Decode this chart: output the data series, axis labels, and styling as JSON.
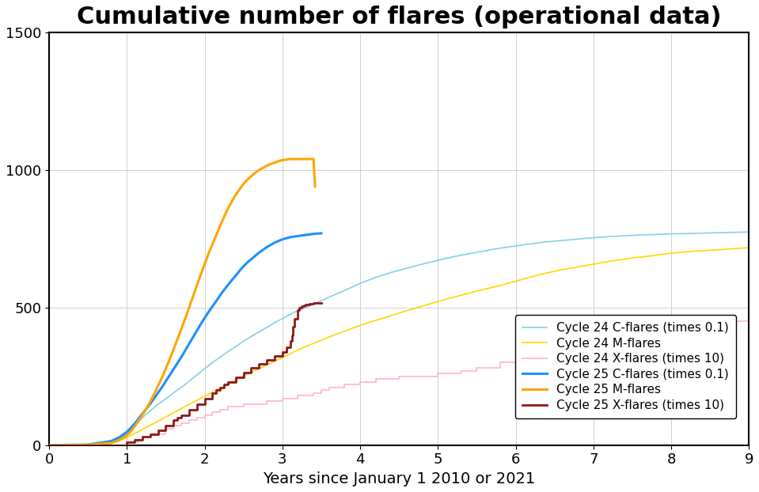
{
  "title": "Cumulative number of flares (operational data)",
  "xlabel": "Years since January 1 2010 or 2021",
  "xlim": [
    0,
    9
  ],
  "ylim": [
    0,
    1500
  ],
  "xticks": [
    0,
    1,
    2,
    3,
    4,
    5,
    6,
    7,
    8,
    9
  ],
  "yticks": [
    0,
    500,
    1000,
    1500
  ],
  "background_color": "#ffffff",
  "grid_color": "#d0d0d0",
  "c24_C": {
    "label": "Cycle 24 C-flares (times 0.1)",
    "color": "#87CEEB",
    "linewidth": 1.2,
    "zorder": 2,
    "x": [
      0,
      0.3,
      0.5,
      0.7,
      0.8,
      0.9,
      1.0,
      1.05,
      1.1,
      1.15,
      1.2,
      1.3,
      1.4,
      1.5,
      1.6,
      1.7,
      1.8,
      1.9,
      2.0,
      2.1,
      2.2,
      2.3,
      2.4,
      2.5,
      2.6,
      2.7,
      2.8,
      2.9,
      3.0,
      3.1,
      3.2,
      3.3,
      3.4,
      3.5,
      3.6,
      3.7,
      3.8,
      3.9,
      4.0,
      4.2,
      4.4,
      4.6,
      4.8,
      5.0,
      5.2,
      5.4,
      5.6,
      5.8,
      6.0,
      6.2,
      6.4,
      6.6,
      6.8,
      7.0,
      7.2,
      7.4,
      7.6,
      7.8,
      8.0,
      8.3,
      8.6,
      9.0
    ],
    "y": [
      0,
      1,
      3,
      8,
      15,
      25,
      40,
      55,
      70,
      85,
      100,
      125,
      148,
      168,
      190,
      210,
      232,
      255,
      278,
      300,
      320,
      340,
      358,
      378,
      395,
      412,
      428,
      445,
      460,
      475,
      490,
      500,
      512,
      525,
      538,
      550,
      562,
      575,
      588,
      610,
      628,
      643,
      658,
      672,
      685,
      696,
      706,
      716,
      724,
      732,
      739,
      744,
      749,
      754,
      758,
      761,
      764,
      766,
      768,
      770,
      772,
      775
    ]
  },
  "c24_M": {
    "label": "Cycle 24 M-flares",
    "color": "#FFD700",
    "linewidth": 1.2,
    "zorder": 2,
    "x": [
      0,
      0.3,
      0.5,
      0.7,
      0.9,
      1.0,
      1.1,
      1.2,
      1.3,
      1.4,
      1.5,
      1.6,
      1.7,
      1.8,
      1.9,
      2.0,
      2.1,
      2.2,
      2.3,
      2.4,
      2.5,
      2.6,
      2.7,
      2.8,
      2.9,
      3.0,
      3.1,
      3.2,
      3.3,
      3.5,
      3.7,
      3.9,
      4.1,
      4.3,
      4.5,
      4.7,
      4.9,
      5.1,
      5.3,
      5.5,
      5.8,
      6.0,
      6.2,
      6.4,
      6.6,
      6.8,
      7.0,
      7.2,
      7.5,
      7.8,
      8.0,
      8.3,
      8.6,
      9.0
    ],
    "y": [
      0,
      1,
      2,
      5,
      15,
      28,
      42,
      57,
      72,
      87,
      102,
      118,
      133,
      148,
      163,
      178,
      193,
      208,
      222,
      237,
      252,
      265,
      278,
      292,
      305,
      318,
      332,
      346,
      358,
      382,
      404,
      425,
      445,
      462,
      480,
      497,
      514,
      530,
      545,
      560,
      580,
      596,
      612,
      626,
      638,
      648,
      658,
      668,
      680,
      690,
      698,
      705,
      710,
      718
    ]
  },
  "c24_X": {
    "label": "Cycle 24 X-flares (times 10)",
    "color": "#FFB6C1",
    "linewidth": 1.2,
    "zorder": 2,
    "x": [
      0,
      0.5,
      0.8,
      1.0,
      1.15,
      1.2,
      1.3,
      1.5,
      1.6,
      1.7,
      1.8,
      1.9,
      2.0,
      2.1,
      2.2,
      2.3,
      2.5,
      2.8,
      3.0,
      3.2,
      3.4,
      3.5,
      3.6,
      3.8,
      4.0,
      4.2,
      4.5,
      5.0,
      5.3,
      5.5,
      5.8,
      6.0,
      6.1,
      6.15,
      6.2,
      6.5,
      7.0,
      7.5,
      8.0,
      8.5,
      9.0
    ],
    "y": [
      0,
      0,
      0,
      10,
      20,
      30,
      40,
      60,
      70,
      80,
      90,
      100,
      110,
      120,
      130,
      140,
      150,
      160,
      170,
      180,
      190,
      200,
      210,
      220,
      230,
      240,
      250,
      260,
      270,
      280,
      300,
      320,
      340,
      360,
      380,
      400,
      420,
      430,
      440,
      450,
      465
    ]
  },
  "c25_C": {
    "label": "Cycle 25 C-flares (times 0.1)",
    "color": "#1E90FF",
    "linewidth": 2.2,
    "zorder": 4,
    "x": [
      0,
      0.5,
      0.8,
      0.9,
      1.0,
      1.05,
      1.1,
      1.15,
      1.2,
      1.25,
      1.3,
      1.35,
      1.4,
      1.45,
      1.5,
      1.55,
      1.6,
      1.65,
      1.7,
      1.75,
      1.8,
      1.85,
      1.9,
      1.95,
      2.0,
      2.05,
      2.1,
      2.15,
      2.2,
      2.25,
      2.3,
      2.35,
      2.4,
      2.45,
      2.5,
      2.55,
      2.6,
      2.65,
      2.7,
      2.75,
      2.8,
      2.85,
      2.9,
      2.95,
      3.0,
      3.05,
      3.1,
      3.15,
      3.2,
      3.25,
      3.3,
      3.35,
      3.4,
      3.45,
      3.5
    ],
    "y": [
      0,
      2,
      15,
      28,
      48,
      62,
      78,
      96,
      114,
      132,
      150,
      170,
      190,
      210,
      232,
      254,
      276,
      298,
      320,
      344,
      368,
      392,
      416,
      440,
      462,
      484,
      504,
      524,
      545,
      564,
      582,
      600,
      616,
      634,
      650,
      664,
      676,
      688,
      700,
      710,
      720,
      728,
      736,
      742,
      748,
      752,
      756,
      758,
      760,
      762,
      764,
      766,
      768,
      769,
      770
    ]
  },
  "c25_M": {
    "label": "Cycle 25 M-flares",
    "color": "#FFA500",
    "linewidth": 2.2,
    "zorder": 4,
    "x": [
      0,
      0.5,
      0.8,
      0.9,
      1.0,
      1.05,
      1.1,
      1.15,
      1.2,
      1.25,
      1.3,
      1.35,
      1.4,
      1.45,
      1.5,
      1.55,
      1.6,
      1.65,
      1.7,
      1.75,
      1.8,
      1.85,
      1.9,
      1.95,
      2.0,
      2.05,
      2.1,
      2.15,
      2.2,
      2.25,
      2.3,
      2.35,
      2.4,
      2.45,
      2.5,
      2.55,
      2.6,
      2.65,
      2.7,
      2.75,
      2.8,
      2.85,
      2.9,
      2.95,
      3.0,
      3.05,
      3.1,
      3.15,
      3.2,
      3.25,
      3.3,
      3.35,
      3.4,
      3.42
    ],
    "y": [
      0,
      1,
      8,
      18,
      35,
      50,
      68,
      88,
      110,
      132,
      158,
      186,
      215,
      245,
      278,
      312,
      348,
      385,
      422,
      460,
      500,
      540,
      580,
      620,
      658,
      696,
      730,
      764,
      798,
      830,
      860,
      886,
      910,
      930,
      950,
      965,
      978,
      990,
      1000,
      1008,
      1016,
      1022,
      1027,
      1032,
      1036,
      1038,
      1040,
      1040,
      1040,
      1040,
      1040,
      1040,
      1040,
      940
    ]
  },
  "c25_X": {
    "label": "Cycle 25 X-flares (times 10)",
    "color": "#8B1A1A",
    "linewidth": 2.0,
    "zorder": 4,
    "x": [
      0,
      0.8,
      1.0,
      1.1,
      1.2,
      1.3,
      1.4,
      1.5,
      1.6,
      1.65,
      1.7,
      1.8,
      1.9,
      2.0,
      2.1,
      2.15,
      2.2,
      2.25,
      2.3,
      2.4,
      2.5,
      2.6,
      2.7,
      2.8,
      2.9,
      3.0,
      3.05,
      3.1,
      3.12,
      3.13,
      3.15,
      3.2,
      3.22,
      3.25,
      3.28,
      3.3,
      3.32,
      3.35,
      3.38,
      3.4,
      3.42,
      3.45,
      3.5
    ],
    "y": [
      0,
      0,
      10,
      20,
      30,
      40,
      55,
      70,
      90,
      100,
      110,
      130,
      150,
      170,
      190,
      200,
      210,
      220,
      230,
      248,
      265,
      280,
      295,
      310,
      325,
      340,
      355,
      380,
      400,
      430,
      460,
      490,
      500,
      505,
      508,
      510,
      512,
      514,
      515,
      516,
      517,
      518,
      518
    ]
  },
  "legend_fontsize": 11,
  "title_fontsize": 22,
  "label_fontsize": 14,
  "tick_fontsize": 13
}
